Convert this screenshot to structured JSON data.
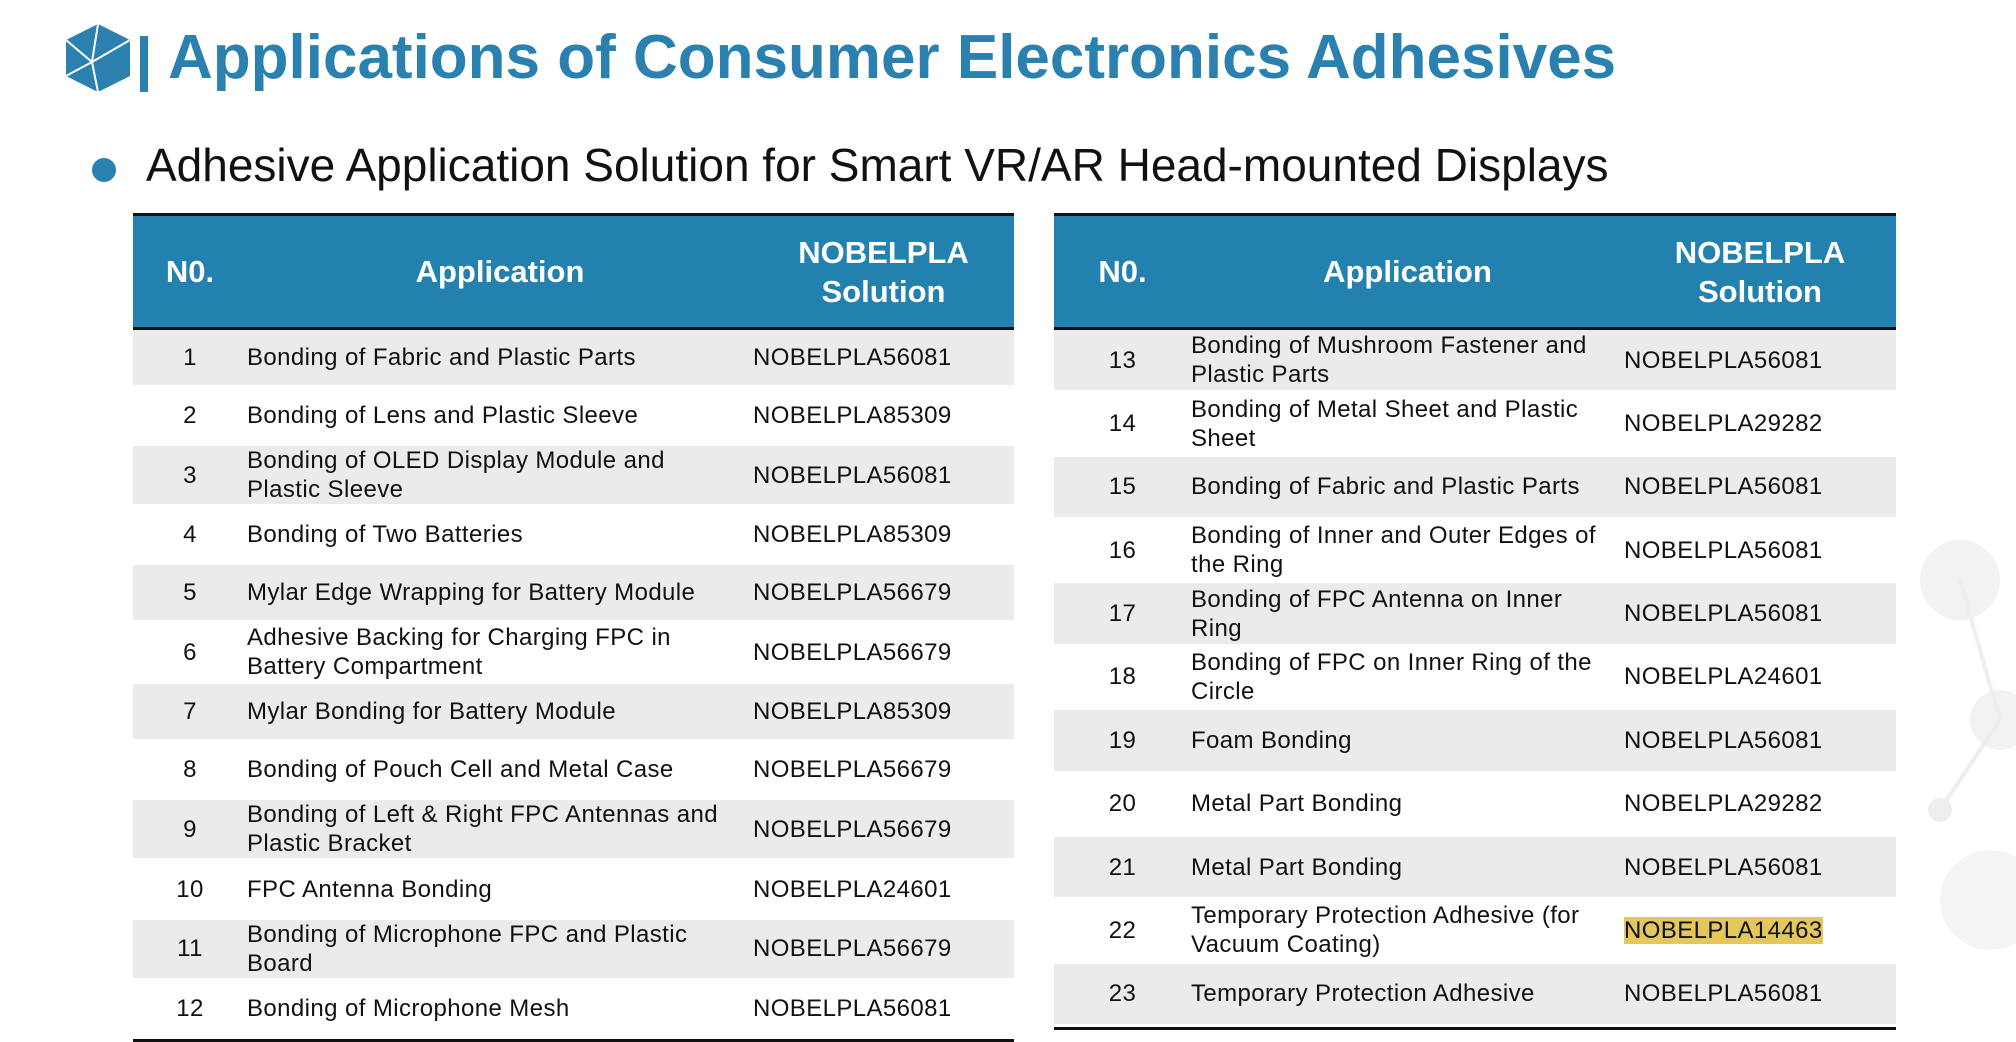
{
  "header": {
    "title": "Applications of Consumer Electronics Adhesives",
    "subtitle": "Adhesive Application Solution for Smart VR/AR Head-mounted Displays"
  },
  "tables": [
    {
      "columns": [
        "N0.",
        "Application",
        "NOBELPLA Solution"
      ],
      "rows": [
        [
          "1",
          "Bonding of Fabric and Plastic Parts",
          "NOBELPLA56081"
        ],
        [
          "2",
          "Bonding of Lens and Plastic Sleeve",
          "NOBELPLA85309"
        ],
        [
          "3",
          "Bonding of OLED Display Module and Plastic Sleeve",
          "NOBELPLA56081"
        ],
        [
          "4",
          "Bonding of Two Batteries",
          "NOBELPLA85309"
        ],
        [
          "5",
          "Mylar Edge Wrapping for Battery Module",
          "NOBELPLA56679"
        ],
        [
          "6",
          "Adhesive Backing for Charging FPC in Battery Compartment",
          "NOBELPLA56679"
        ],
        [
          "7",
          "Mylar Bonding for Battery Module",
          "NOBELPLA85309"
        ],
        [
          "8",
          "Bonding of Pouch Cell and Metal Case",
          "NOBELPLA56679"
        ],
        [
          "9",
          "Bonding of Left & Right FPC Antennas and Plastic Bracket",
          "NOBELPLA56679"
        ],
        [
          "10",
          "FPC Antenna Bonding",
          "NOBELPLA24601"
        ],
        [
          "11",
          "Bonding of Microphone FPC and Plastic Board",
          "NOBELPLA56679"
        ],
        [
          "12",
          "Bonding of Microphone Mesh",
          "NOBELPLA56081"
        ]
      ]
    },
    {
      "columns": [
        "N0.",
        "Application",
        "NOBELPLA Solution"
      ],
      "rows": [
        [
          "13",
          "Bonding of Mushroom Fastener and Plastic Parts",
          "NOBELPLA56081"
        ],
        [
          "14",
          "Bonding of Metal Sheet and Plastic Sheet",
          "NOBELPLA29282"
        ],
        [
          "15",
          "Bonding of Fabric and Plastic Parts",
          "NOBELPLA56081"
        ],
        [
          "16",
          "Bonding of Inner and Outer Edges of the Ring",
          "NOBELPLA56081"
        ],
        [
          "17",
          "Bonding of FPC Antenna on Inner Ring",
          "NOBELPLA56081"
        ],
        [
          "18",
          "Bonding of FPC on Inner Ring of the Circle",
          "NOBELPLA24601"
        ],
        [
          "19",
          "Foam Bonding",
          "NOBELPLA56081"
        ],
        [
          "20",
          "Metal Part Bonding",
          "NOBELPLA29282"
        ],
        [
          "21",
          "Metal Part Bonding",
          "NOBELPLA56081"
        ],
        [
          "22",
          "Temporary Protection Adhesive (for Vacuum Coating)",
          "NOBELPLA14463"
        ],
        [
          "23",
          "Temporary Protection Adhesive",
          "NOBELPLA56081"
        ]
      ]
    }
  ]
}
